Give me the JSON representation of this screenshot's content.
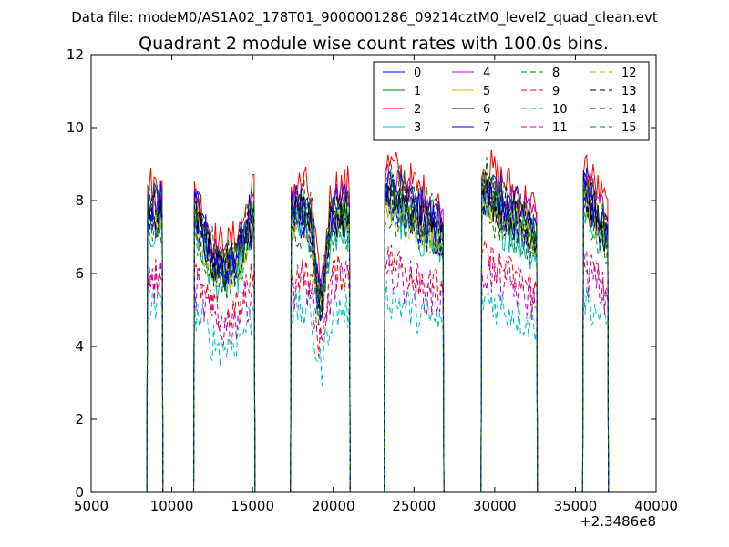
{
  "header": {
    "data_file": "Data file: modeM0/AS1A02_178T01_9000001286_09214cztM0_level2_quad_clean.evt"
  },
  "chart_data": {
    "type": "line",
    "title": "Quadrant 2 module wise count rates with 100.0s bins.",
    "xlabel": "",
    "ylabel": "",
    "x_offset_label": "+2.3486e8",
    "xlim": [
      5000,
      40000
    ],
    "ylim": [
      0,
      12
    ],
    "xticks": [
      5000,
      10000,
      15000,
      20000,
      25000,
      30000,
      35000,
      40000
    ],
    "yticks": [
      0,
      2,
      4,
      6,
      8,
      10,
      12
    ],
    "grid": false,
    "legend_position": "top-right",
    "legend_columns": 4,
    "segments": [
      {
        "start": 8500,
        "end": 9400,
        "shape": "flat"
      },
      {
        "start": 11400,
        "end": 15100,
        "shape": "dip"
      },
      {
        "start": 17400,
        "end": 21000,
        "shape": "deepdip"
      },
      {
        "start": 23200,
        "end": 26800,
        "shape": "decline"
      },
      {
        "start": 29200,
        "end": 32600,
        "shape": "decline"
      },
      {
        "start": 35500,
        "end": 37000,
        "shape": "decline"
      }
    ],
    "series": [
      {
        "name": "0",
        "color": "#0000ff",
        "dash": "solid",
        "level": 7.4
      },
      {
        "name": "1",
        "color": "#008000",
        "dash": "solid",
        "level": 7.7
      },
      {
        "name": "2",
        "color": "#ff0000",
        "dash": "solid",
        "level": 8.4
      },
      {
        "name": "3",
        "color": "#00bfbf",
        "dash": "solid",
        "level": 7.2
      },
      {
        "name": "4",
        "color": "#bf00bf",
        "dash": "solid",
        "level": 8.1
      },
      {
        "name": "5",
        "color": "#bfbf00",
        "dash": "solid",
        "level": 7.5
      },
      {
        "name": "6",
        "color": "#000000",
        "dash": "solid",
        "level": 7.6
      },
      {
        "name": "7",
        "color": "#0000ff",
        "dash": "solid",
        "level": 7.9
      },
      {
        "name": "8",
        "color": "#008000",
        "dash": "dashed",
        "level": 7.1
      },
      {
        "name": "9",
        "color": "#ff0000",
        "dash": "dashed",
        "level": 6.0
      },
      {
        "name": "10",
        "color": "#00bfbf",
        "dash": "dashed",
        "level": 5.0
      },
      {
        "name": "11",
        "color": "#bf00bf",
        "dash": "dashed",
        "level": 5.7
      },
      {
        "name": "12",
        "color": "#bfbf00",
        "dash": "dashed",
        "level": 7.3
      },
      {
        "name": "13",
        "color": "#000000",
        "dash": "dashed",
        "level": 7.8
      },
      {
        "name": "14",
        "color": "#0000ff",
        "dash": "dashed",
        "level": 7.5
      },
      {
        "name": "15",
        "color": "#008000",
        "dash": "dashed",
        "level": 8.0
      }
    ]
  }
}
